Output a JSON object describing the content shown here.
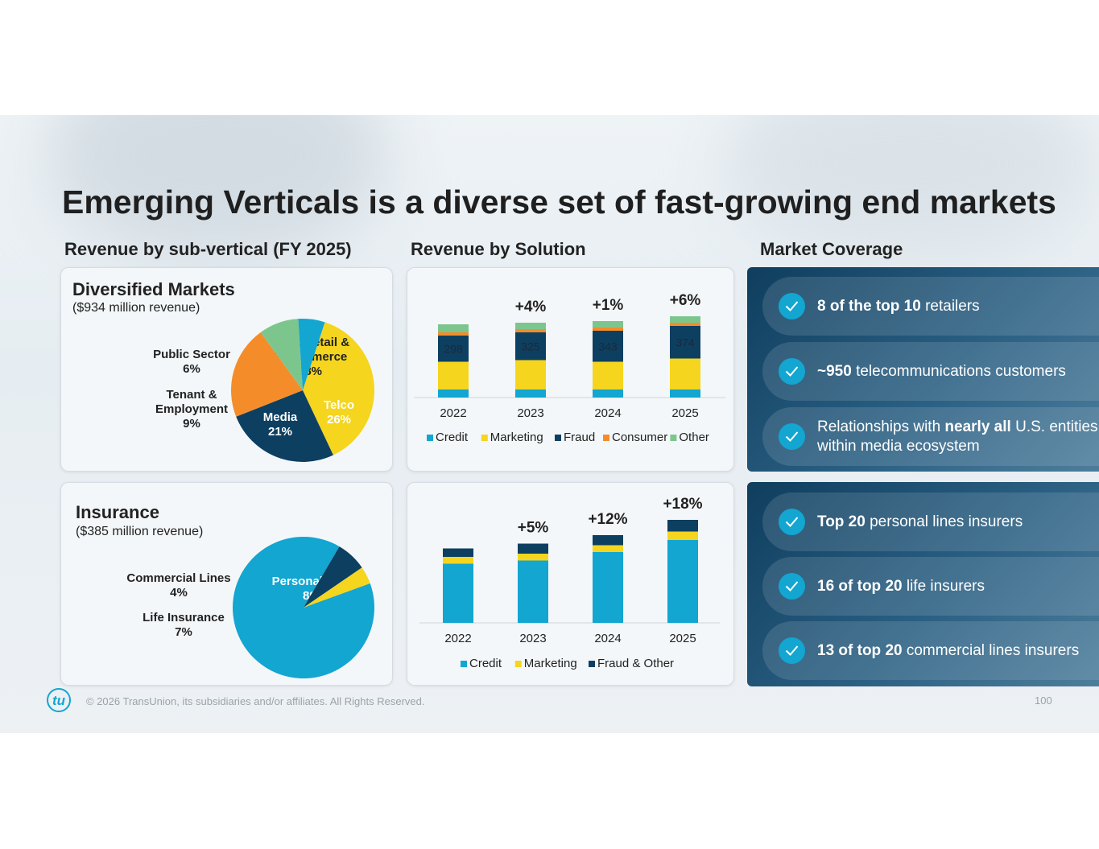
{
  "title": "Emerging Verticals is a diverse set of fast-growing end markets",
  "sections": {
    "sub_vertical": "Revenue by sub-vertical (FY 2025)",
    "solution": "Revenue by Solution",
    "coverage": "Market Coverage"
  },
  "diversified": {
    "title": "Diversified Markets",
    "subtitle": "($934 million revenue)"
  },
  "insurance": {
    "title": "Insurance",
    "subtitle": "($385 million revenue)"
  },
  "coverage": {
    "diversified": [
      {
        "bold": "8 of the top 10",
        "text": " retailers"
      },
      {
        "bold": "~950",
        "text": " telecommunications customers"
      },
      {
        "pre": "Relationships with ",
        "bold": "nearly all",
        "text": " U.S. entities within media ecosystem"
      }
    ],
    "insurance": [
      {
        "bold": "Top 20",
        "text": " personal lines insurers"
      },
      {
        "bold": "16 of top 20",
        "text": " life insurers"
      },
      {
        "bold": "13 of top 20",
        "text": " commercial lines insurers"
      }
    ]
  },
  "footer": {
    "copyright": "© 2026 TransUnion, its subsidiaries and/or affiliates. All Rights Reserved.",
    "page": "100",
    "logo": "tu"
  },
  "chart_data": [
    {
      "type": "pie",
      "title": "Diversified Markets",
      "slices": [
        {
          "name": "Tech, Retail & E-Commerce",
          "label": [
            "Tech, Retail &",
            "E-Commerce",
            "38%"
          ],
          "value": 38,
          "color": "#f5d51e"
        },
        {
          "name": "Telco",
          "label": [
            "Telco",
            "26%"
          ],
          "value": 26,
          "color": "#0d3f61"
        },
        {
          "name": "Media",
          "label": [
            "Media",
            "21%"
          ],
          "value": 21,
          "color": "#f58c2a"
        },
        {
          "name": "Tenant & Employment",
          "label": [
            "Tenant &",
            "Employment",
            "9%"
          ],
          "value": 9,
          "color": "#7cc68e"
        },
        {
          "name": "Public Sector",
          "label": [
            "Public Sector",
            "6%"
          ],
          "value": 6,
          "color": "#12a6d1"
        }
      ]
    },
    {
      "type": "bar",
      "stacked": true,
      "categories": [
        "2022",
        "2023",
        "2024",
        "2025"
      ],
      "series": [
        {
          "name": "Credit",
          "values": [
            20,
            20,
            20,
            20
          ],
          "color": "#12a6d1"
        },
        {
          "name": "Marketing",
          "values": [
            69,
            73,
            69,
            77
          ],
          "color": "#f5d51e"
        },
        {
          "name": "Fraud",
          "values": [
            65,
            69,
            77,
            81
          ],
          "color": "#0d3f61"
        },
        {
          "name": "Consumer",
          "values": [
            8,
            8,
            8,
            8
          ],
          "color": "#f58c2a"
        },
        {
          "name": "Other",
          "values": [
            20,
            16,
            16,
            16
          ],
          "color": "#7cc68e"
        }
      ],
      "fraud_labels": [
        "298",
        "325",
        "343",
        "374"
      ],
      "growth": [
        "",
        "+4%",
        "+1%",
        "+6%"
      ],
      "legend": "bottom"
    },
    {
      "type": "pie",
      "title": "Insurance",
      "slices": [
        {
          "name": "Personal Lines",
          "label": [
            "Personal Lines",
            "89%"
          ],
          "value": 89,
          "color": "#12a6d1"
        },
        {
          "name": "Life Insurance",
          "label": [
            "Life Insurance",
            "7%"
          ],
          "value": 7,
          "color": "#0d3f61"
        },
        {
          "name": "Commercial Lines",
          "label": [
            "Commercial Lines",
            "4%"
          ],
          "value": 4,
          "color": "#f5d51e"
        }
      ]
    },
    {
      "type": "bar",
      "stacked": true,
      "categories": [
        "2022",
        "2023",
        "2024",
        "2025"
      ],
      "series": [
        {
          "name": "Credit",
          "values": [
            147,
            155,
            176,
            206
          ],
          "color": "#12a6d1"
        },
        {
          "name": "Marketing",
          "values": [
            17,
            17,
            17,
            21
          ],
          "color": "#f5d51e"
        },
        {
          "name": "Fraud & Other",
          "values": [
            21,
            25,
            25,
            29
          ],
          "color": "#0d3f61"
        }
      ],
      "growth": [
        "",
        "+5%",
        "+12%",
        "+18%"
      ],
      "legend": "bottom"
    }
  ]
}
